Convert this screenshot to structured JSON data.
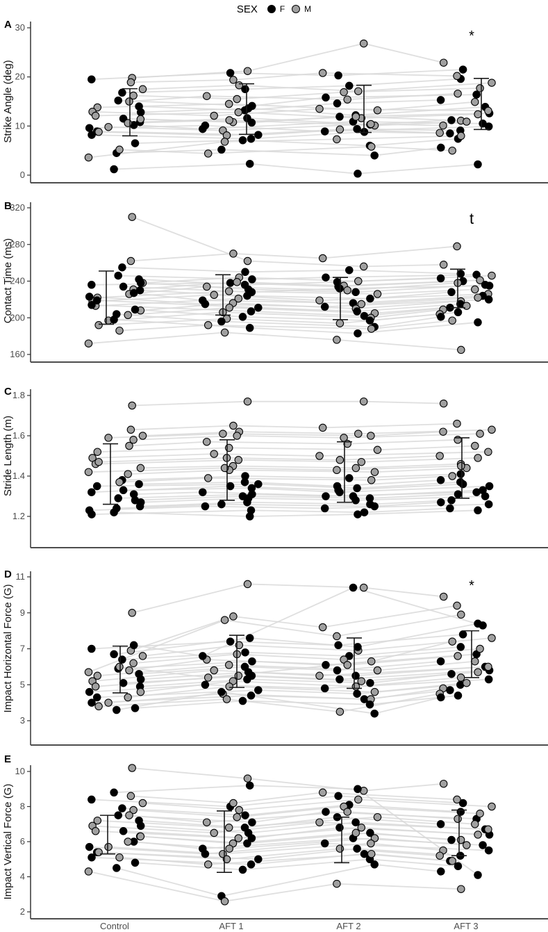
{
  "legend": {
    "title": "SEX",
    "entries": [
      {
        "label": "F",
        "color": "#000000"
      },
      {
        "label": "M",
        "color": "#a0a0a0"
      }
    ]
  },
  "x_categories": [
    "Control",
    "AFT 1",
    "AFT 2",
    "AFT 3"
  ],
  "style_colors": {
    "line": "#d9d9d9",
    "point_stroke": "#000000",
    "error_bar": "#1a1a1a",
    "axis": "#4d4d4d",
    "tick_label": "#4d4d4d"
  },
  "chart_data": {
    "type": "scatter",
    "subtype": "jittered strip plot with subject lines and mean±SD error bars, 5 stacked panels",
    "categories": [
      "Control",
      "AFT 1",
      "AFT 2",
      "AFT 3"
    ],
    "panels": [
      {
        "id": "A",
        "ylabel": "Strike Angle (deg)",
        "metric": "strike_angle",
        "ylim": [
          0,
          30
        ],
        "yticks": [
          0,
          10,
          20,
          30
        ],
        "ytick_labels": [
          "0",
          "10",
          "20",
          "30"
        ],
        "annotation": {
          "text": "*",
          "category": "AFT 3"
        },
        "summary": {
          "mean": [
            12.8,
            13.45,
            13.5,
            14.5
          ],
          "sd": [
            4.8,
            5.15,
            4.8,
            5.2
          ]
        }
      },
      {
        "id": "B",
        "ylabel": "Contact Time (ms)",
        "metric": "contact_time",
        "ylim": [
          160,
          320
        ],
        "yticks": [
          160,
          200,
          240,
          280,
          320
        ],
        "ytick_labels": [
          "160",
          "200",
          "240",
          "280",
          "320"
        ],
        "annotation": {
          "text": "t",
          "category": "AFT 3"
        },
        "summary": {
          "mean": [
            222,
            225,
            221,
            232
          ],
          "sd": [
            29,
            22,
            23,
            21
          ]
        }
      },
      {
        "id": "C",
        "ylabel": "Stride Length (m)",
        "metric": "stride_length",
        "ylim": [
          1.15,
          1.8
        ],
        "yticks": [
          1.2,
          1.4,
          1.6,
          1.8
        ],
        "ytick_labels": [
          "1.2",
          "1.4",
          "1.6",
          "1.8"
        ],
        "annotation": null,
        "summary": {
          "mean": [
            1.41,
            1.43,
            1.42,
            1.44
          ],
          "sd": [
            0.15,
            0.15,
            0.15,
            0.15
          ]
        }
      },
      {
        "id": "D",
        "ylabel": "Impact Horizontal Force (G)",
        "metric": "impact_horizontal",
        "ylim": [
          3,
          11
        ],
        "yticks": [
          3,
          5,
          7,
          9,
          11
        ],
        "ytick_labels": [
          "3",
          "5",
          "7",
          "9",
          "11"
        ],
        "annotation": {
          "text": "*",
          "category": "AFT 3"
        },
        "summary": {
          "mean": [
            5.85,
            6.3,
            6.2,
            6.7
          ],
          "sd": [
            1.3,
            1.45,
            1.4,
            1.3
          ]
        }
      },
      {
        "id": "E",
        "ylabel": "Impact Vertical Force (G)",
        "metric": "impact_vertical",
        "ylim": [
          2,
          10
        ],
        "yticks": [
          2,
          4,
          6,
          8,
          10
        ],
        "ytick_labels": [
          "2",
          "4",
          "6",
          "8",
          "10"
        ],
        "annotation": null,
        "summary": {
          "mean": [
            6.4,
            6.0,
            6.1,
            6.5
          ],
          "sd": [
            1.1,
            1.75,
            1.3,
            1.3
          ]
        }
      }
    ],
    "subjects": [
      {
        "sex": "F",
        "strike_angle": [
          19.5,
          20.8,
          20.3,
          21.5
        ],
        "contact_time": [
          236,
          238,
          234,
          240
        ],
        "stride_length": [
          1.32,
          1.35,
          1.33,
          1.36
        ],
        "impact_horizontal": [
          7.0,
          7.4,
          7.2,
          7.8
        ],
        "impact_vertical": [
          8.4,
          8.0,
          8.6,
          8.2
        ]
      },
      {
        "sex": "M",
        "strike_angle": [
          19.8,
          21.2,
          26.8,
          22.9
        ],
        "contact_time": [
          310,
          262,
          256,
          258
        ],
        "stride_length": [
          1.75,
          1.77,
          1.77,
          1.76
        ],
        "impact_horizontal": [
          9.0,
          10.6,
          10.4,
          9.9
        ],
        "impact_vertical": [
          10.2,
          9.6,
          8.9,
          9.3
        ]
      },
      {
        "sex": "F",
        "strike_angle": [
          16.8,
          17.5,
          18.2,
          19.6
        ],
        "contact_time": [
          255,
          250,
          252,
          248
        ],
        "stride_length": [
          1.38,
          1.4,
          1.39,
          1.41
        ],
        "impact_horizontal": [
          6.4,
          6.8,
          6.6,
          7.1
        ],
        "impact_vertical": [
          7.9,
          7.5,
          8.1,
          7.7
        ]
      },
      {
        "sex": "M",
        "strike_angle": [
          18.9,
          19.4,
          20.8,
          20.2
        ],
        "contact_time": [
          262,
          270,
          265,
          278
        ],
        "stride_length": [
          1.63,
          1.65,
          1.64,
          1.66
        ],
        "impact_horizontal": [
          6.9,
          8.8,
          8.2,
          9.4
        ],
        "impact_vertical": [
          8.6,
          8.2,
          8.8,
          8.4
        ]
      },
      {
        "sex": "F",
        "strike_angle": [
          15.2,
          14.1,
          15.8,
          16.4
        ],
        "contact_time": [
          246,
          242,
          244,
          247
        ],
        "stride_length": [
          1.29,
          1.31,
          1.3,
          1.32
        ],
        "impact_horizontal": [
          5.9,
          6.3,
          6.1,
          6.7
        ],
        "impact_vertical": [
          7.5,
          7.1,
          7.7,
          7.3
        ]
      },
      {
        "sex": "M",
        "strike_angle": [
          17.5,
          18.3,
          17.1,
          18.8
        ],
        "contact_time": [
          238,
          244,
          240,
          246
        ],
        "stride_length": [
          1.6,
          1.62,
          1.61,
          1.63
        ],
        "impact_horizontal": [
          6.6,
          7.2,
          6.9,
          7.6
        ],
        "impact_vertical": [
          8.2,
          7.8,
          8.4,
          8.0
        ]
      },
      {
        "sex": "F",
        "strike_angle": [
          14.0,
          13.2,
          14.6,
          15.3
        ],
        "contact_time": [
          242,
          236,
          239,
          243
        ],
        "stride_length": [
          1.36,
          1.37,
          1.35,
          1.38
        ],
        "impact_horizontal": [
          5.6,
          6.0,
          5.8,
          6.3
        ],
        "impact_vertical": [
          7.2,
          6.8,
          7.4,
          7.0
        ]
      },
      {
        "sex": "M",
        "strike_angle": [
          16.2,
          15.5,
          16.9,
          17.7
        ],
        "contact_time": [
          231,
          239,
          235,
          241
        ],
        "stride_length": [
          1.58,
          1.6,
          1.59,
          1.61
        ],
        "impact_horizontal": [
          6.2,
          6.7,
          6.4,
          7.0
        ],
        "impact_vertical": [
          7.8,
          7.4,
          8.0,
          7.6
        ]
      },
      {
        "sex": "F",
        "strike_angle": [
          12.8,
          13.6,
          12.2,
          13.9
        ],
        "contact_time": [
          238,
          231,
          228,
          236
        ],
        "stride_length": [
          1.27,
          1.29,
          1.28,
          1.3
        ],
        "impact_horizontal": [
          5.3,
          5.7,
          5.5,
          6.0
        ],
        "impact_vertical": [
          6.9,
          6.5,
          7.1,
          6.7
        ]
      },
      {
        "sex": "M",
        "strike_angle": [
          15.0,
          16.1,
          15.4,
          16.6
        ],
        "contact_time": [
          226,
          234,
          230,
          238
        ],
        "stride_length": [
          1.55,
          1.57,
          1.56,
          1.58
        ],
        "impact_horizontal": [
          5.8,
          6.4,
          6.1,
          6.6
        ],
        "impact_vertical": [
          7.5,
          7.1,
          7.7,
          7.3
        ]
      },
      {
        "sex": "F",
        "strike_angle": [
          11.5,
          10.7,
          11.9,
          12.6
        ],
        "contact_time": [
          234,
          228,
          232,
          235
        ],
        "stride_length": [
          1.33,
          1.34,
          1.32,
          1.35
        ],
        "impact_horizontal": [
          5.1,
          5.5,
          5.3,
          5.8
        ],
        "impact_vertical": [
          6.6,
          6.2,
          6.8,
          6.4
        ]
      },
      {
        "sex": "M",
        "strike_angle": [
          13.8,
          14.5,
          13.2,
          14.9
        ],
        "contact_time": [
          222,
          229,
          226,
          231
        ],
        "stride_length": [
          1.52,
          1.54,
          1.53,
          1.55
        ],
        "impact_horizontal": [
          5.5,
          6.1,
          5.8,
          6.3
        ],
        "impact_vertical": [
          7.2,
          6.8,
          7.4,
          7.0
        ]
      },
      {
        "sex": "F",
        "strike_angle": [
          10.8,
          11.6,
          10.3,
          11.2
        ],
        "contact_time": [
          230,
          224,
          221,
          228
        ],
        "stride_length": [
          1.25,
          1.27,
          1.26,
          1.28
        ],
        "impact_horizontal": [
          4.9,
          5.3,
          5.1,
          5.6
        ],
        "impact_vertical": [
          6.3,
          5.9,
          6.5,
          6.1
        ]
      },
      {
        "sex": "M",
        "strike_angle": [
          12.9,
          12.1,
          13.5,
          13.1
        ],
        "contact_time": [
          218,
          225,
          219,
          226
        ],
        "stride_length": [
          1.49,
          1.51,
          1.5,
          1.52
        ],
        "impact_horizontal": [
          5.2,
          5.8,
          5.5,
          6.0
        ],
        "impact_vertical": [
          6.9,
          6.5,
          7.1,
          6.7
        ]
      },
      {
        "sex": "F",
        "strike_angle": [
          10.2,
          9.4,
          10.9,
          10.5
        ],
        "contact_time": [
          227,
          219,
          216,
          224
        ],
        "stride_length": [
          1.31,
          1.32,
          1.3,
          1.33
        ],
        "impact_horizontal": [
          7.2,
          6.6,
          10.4,
          8.3
        ],
        "impact_vertical": [
          6.0,
          5.6,
          6.2,
          5.8
        ]
      },
      {
        "sex": "M",
        "strike_angle": [
          12.1,
          12.8,
          11.6,
          12.4
        ],
        "contact_time": [
          213,
          221,
          215,
          222
        ],
        "stride_length": [
          1.46,
          1.48,
          1.47,
          1.49
        ],
        "impact_horizontal": [
          4.9,
          5.5,
          5.2,
          5.7
        ],
        "impact_vertical": [
          6.6,
          6.2,
          6.8,
          6.4
        ]
      },
      {
        "sex": "F",
        "strike_angle": [
          9.6,
          10.1,
          8.9,
          9.9
        ],
        "contact_time": [
          223,
          215,
          212,
          220
        ],
        "stride_length": [
          1.23,
          1.25,
          1.24,
          1.26
        ],
        "impact_horizontal": [
          4.6,
          5.0,
          4.8,
          5.3
        ],
        "impact_vertical": [
          5.7,
          5.3,
          5.9,
          5.5
        ]
      },
      {
        "sex": "M",
        "strike_angle": [
          11.4,
          10.8,
          11.9,
          11.1
        ],
        "contact_time": [
          208,
          216,
          210,
          218
        ],
        "stride_length": [
          1.44,
          1.45,
          1.44,
          1.46
        ],
        "impact_horizontal": [
          4.6,
          5.2,
          4.9,
          5.4
        ],
        "impact_vertical": [
          6.3,
          5.9,
          6.5,
          6.1
        ]
      },
      {
        "sex": "F",
        "strike_angle": [
          8.9,
          8.2,
          9.4,
          9.1
        ],
        "contact_time": [
          219,
          211,
          207,
          215
        ],
        "stride_length": [
          1.35,
          1.36,
          1.34,
          1.37
        ],
        "impact_horizontal": [
          4.3,
          4.7,
          4.5,
          5.0
        ],
        "impact_vertical": [
          5.4,
          5.0,
          5.6,
          5.2
        ]
      },
      {
        "sex": "M",
        "strike_angle": [
          10.6,
          11.2,
          10.1,
          10.9
        ],
        "contact_time": [
          203,
          211,
          205,
          213
        ],
        "stride_length": [
          1.41,
          1.43,
          1.42,
          1.44
        ],
        "impact_horizontal": [
          4.3,
          4.9,
          4.6,
          5.1
        ],
        "impact_vertical": [
          6.0,
          5.6,
          6.2,
          5.8
        ]
      },
      {
        "sex": "F",
        "strike_angle": [
          8.2,
          7.4,
          8.8,
          8.5
        ],
        "contact_time": [
          214,
          207,
          202,
          211
        ],
        "stride_length": [
          1.21,
          1.23,
          1.22,
          1.24
        ],
        "impact_horizontal": [
          4.0,
          4.4,
          4.2,
          4.7
        ],
        "impact_vertical": [
          5.1,
          4.7,
          5.3,
          4.9
        ]
      },
      {
        "sex": "M",
        "strike_angle": [
          9.8,
          9.1,
          10.4,
          10.1
        ],
        "contact_time": [
          197,
          206,
          200,
          209
        ],
        "stride_length": [
          1.59,
          1.61,
          1.6,
          1.62
        ],
        "impact_horizontal": [
          4.0,
          4.5,
          4.2,
          4.8
        ],
        "impact_vertical": [
          5.7,
          5.3,
          5.9,
          5.5
        ]
      },
      {
        "sex": "F",
        "strike_angle": [
          6.5,
          7.1,
          6.0,
          7.4
        ],
        "contact_time": [
          209,
          201,
          197,
          206
        ],
        "stride_length": [
          1.28,
          1.3,
          1.29,
          1.31
        ],
        "impact_horizontal": [
          3.7,
          4.1,
          3.9,
          4.4
        ],
        "impact_vertical": [
          4.8,
          4.4,
          5.0,
          4.6
        ]
      },
      {
        "sex": "M",
        "strike_angle": [
          8.8,
          8.1,
          9.3,
          8.6
        ],
        "contact_time": [
          192,
          199,
          194,
          204
        ],
        "stride_length": [
          1.47,
          1.49,
          1.48,
          1.5
        ],
        "impact_horizontal": [
          3.8,
          4.2,
          3.5,
          4.5
        ],
        "impact_vertical": [
          5.4,
          5.0,
          5.6,
          5.2
        ]
      },
      {
        "sex": "F",
        "strike_angle": [
          4.5,
          5.2,
          4.0,
          5.6
        ],
        "contact_time": [
          204,
          196,
          190,
          201
        ],
        "stride_length": [
          1.24,
          1.26,
          1.25,
          1.27
        ],
        "impact_horizontal": [
          3.6,
          4.6,
          3.4,
          4.3
        ],
        "impact_vertical": [
          4.5,
          2.9,
          4.7,
          4.3
        ]
      },
      {
        "sex": "M",
        "strike_angle": [
          5.2,
          4.4,
          5.8,
          5.0
        ],
        "contact_time": [
          186,
          192,
          188,
          197
        ],
        "stride_length": [
          1.37,
          1.39,
          1.38,
          1.4
        ],
        "impact_horizontal": [
          6.0,
          5.4,
          6.3,
          7.4
        ],
        "impact_vertical": [
          5.1,
          4.7,
          5.3,
          4.9
        ]
      },
      {
        "sex": "F",
        "strike_angle": [
          1.2,
          2.3,
          0.3,
          2.2
        ],
        "contact_time": [
          198,
          189,
          183,
          195
        ],
        "stride_length": [
          1.22,
          1.2,
          1.21,
          1.23
        ],
        "impact_horizontal": [
          6.7,
          7.6,
          7.1,
          8.4
        ],
        "impact_vertical": [
          8.8,
          9.2,
          9.0,
          4.1
        ]
      },
      {
        "sex": "M",
        "strike_angle": [
          3.6,
          6.8,
          7.3,
          8.0
        ],
        "contact_time": [
          172,
          184,
          176,
          165
        ],
        "stride_length": [
          1.42,
          1.44,
          1.43,
          1.45
        ],
        "impact_horizontal": [
          5.7,
          8.6,
          7.7,
          8.9
        ],
        "impact_vertical": [
          4.3,
          2.6,
          3.6,
          3.3
        ]
      }
    ]
  }
}
